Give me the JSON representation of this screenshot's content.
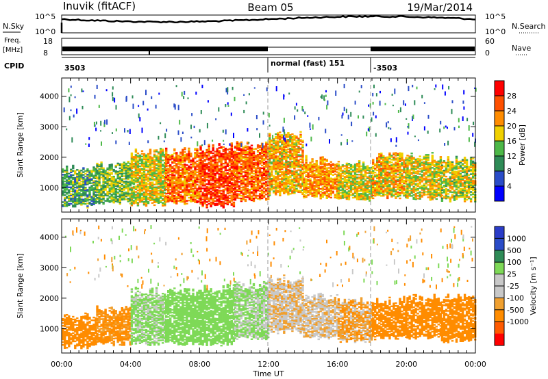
{
  "header": {
    "site": "Inuvik (fitACF)",
    "beam": "Beam 05",
    "date": "19/Mar/2014"
  },
  "nsky_panel": {
    "left_label": "N.Sky",
    "right_label": "N.Search",
    "left_ticks": [
      "10^5",
      "10^0"
    ],
    "right_ticks": [
      "10^5",
      "10^0"
    ]
  },
  "freq_panel": {
    "left_label": "Freq.",
    "left_unit": "[MHz]",
    "right_label": "Nave",
    "left_ticks": [
      "18",
      "8"
    ],
    "right_ticks": [
      "60",
      "0"
    ]
  },
  "cpid_panel": {
    "label": "CPID",
    "segments": [
      {
        "text": "3503",
        "start_hour": 0
      },
      {
        "text": "normal (fast) 151",
        "start_hour": 12
      },
      {
        "text": "-3503",
        "start_hour": 18
      }
    ]
  },
  "time_axis": {
    "label": "Time UT",
    "ticks": [
      "00:00",
      "04:00",
      "08:00",
      "12:00",
      "16:00",
      "20:00",
      "00:00"
    ]
  },
  "colors": {
    "power": [
      "#0000ff",
      "#2a4cc8",
      "#2e8b57",
      "#4db848",
      "#f0d000",
      "#ff8c00",
      "#ff5000",
      "#ff0000"
    ],
    "velocity": [
      "#ff0000",
      "#ff5a00",
      "#ff8c00",
      "#f0a030",
      "#c8c8c8",
      "#c8c8c8",
      "#7ed957",
      "#2e8b57",
      "#2a4cc8",
      "#2a3cc8"
    ]
  },
  "chart_data": [
    {
      "type": "heatmap",
      "name": "power-panel",
      "xlabel": "",
      "ylabel": "Slant Range [km]",
      "xlim": [
        0,
        24
      ],
      "ylim": [
        200,
        4600
      ],
      "yticks": [
        "1000",
        "2000",
        "3000",
        "4000"
      ],
      "ytick_values": [
        1000,
        2000,
        3000,
        4000
      ],
      "colorbar": {
        "label": "Power [dB]",
        "ticks": [
          "4",
          "8",
          "12",
          "16",
          "20",
          "24",
          "28"
        ],
        "range": [
          0,
          32
        ]
      },
      "bands": [
        {
          "x": [
            0,
            2
          ],
          "range": [
            400,
            1600
          ],
          "value": 12
        },
        {
          "x": [
            2,
            4
          ],
          "range": [
            500,
            1700
          ],
          "value": 14
        },
        {
          "x": [
            4,
            6
          ],
          "range": [
            450,
            2200
          ],
          "value": 18
        },
        {
          "x": [
            6,
            8
          ],
          "range": [
            500,
            2200
          ],
          "value": 24
        },
        {
          "x": [
            8,
            10
          ],
          "range": [
            400,
            2300
          ],
          "value": 27
        },
        {
          "x": [
            10,
            12
          ],
          "range": [
            600,
            2400
          ],
          "value": 25
        },
        {
          "x": [
            12,
            14
          ],
          "range": [
            800,
            2700
          ],
          "value": 20
        },
        {
          "x": [
            14,
            16
          ],
          "range": [
            700,
            1900
          ],
          "value": 22
        },
        {
          "x": [
            16,
            18
          ],
          "range": [
            600,
            1800
          ],
          "value": 18
        },
        {
          "x": [
            18,
            20
          ],
          "range": [
            700,
            2000
          ],
          "value": 20
        },
        {
          "x": [
            20,
            22
          ],
          "range": [
            650,
            2000
          ],
          "value": 18
        },
        {
          "x": [
            22,
            24
          ],
          "range": [
            600,
            1900
          ],
          "value": 17
        }
      ]
    },
    {
      "type": "heatmap",
      "name": "velocity-panel",
      "xlabel": "Time UT",
      "ylabel": "Slant Range [km]",
      "xlim": [
        0,
        24
      ],
      "ylim": [
        200,
        4600
      ],
      "yticks": [
        "1000",
        "2000",
        "3000",
        "4000"
      ],
      "ytick_values": [
        1000,
        2000,
        3000,
        4000
      ],
      "colorbar": {
        "label": "Velocity [m s⁻¹]",
        "ticks": [
          "1000",
          "500",
          "100",
          "25",
          "-25",
          "-100",
          "-500",
          "-1000"
        ]
      },
      "bands": [
        {
          "x": [
            0,
            2
          ],
          "range": [
            400,
            1400
          ],
          "value": -200
        },
        {
          "x": [
            2,
            4
          ],
          "range": [
            500,
            1600
          ],
          "value": -150
        },
        {
          "x": [
            4,
            6
          ],
          "range": [
            500,
            2200
          ],
          "value": 150
        },
        {
          "x": [
            6,
            8
          ],
          "range": [
            500,
            2200
          ],
          "value": 300
        },
        {
          "x": [
            8,
            10
          ],
          "range": [
            500,
            2300
          ],
          "value": 250
        },
        {
          "x": [
            10,
            12
          ],
          "range": [
            700,
            2400
          ],
          "value": 120
        },
        {
          "x": [
            12,
            14
          ],
          "range": [
            900,
            2600
          ],
          "value": 0
        },
        {
          "x": [
            14,
            16
          ],
          "range": [
            700,
            2000
          ],
          "value": 0
        },
        {
          "x": [
            16,
            18
          ],
          "range": [
            600,
            1900
          ],
          "value": -80
        },
        {
          "x": [
            18,
            20
          ],
          "range": [
            700,
            1900
          ],
          "value": -200
        },
        {
          "x": [
            20,
            22
          ],
          "range": [
            700,
            2000
          ],
          "value": -250
        },
        {
          "x": [
            22,
            24
          ],
          "range": [
            600,
            2000
          ],
          "value": -220
        }
      ]
    }
  ]
}
